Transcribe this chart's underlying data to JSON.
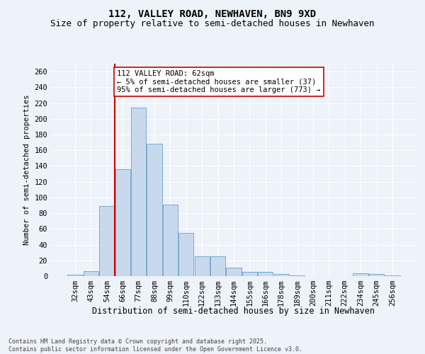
{
  "title": "112, VALLEY ROAD, NEWHAVEN, BN9 9XD",
  "subtitle": "Size of property relative to semi-detached houses in Newhaven",
  "xlabel": "Distribution of semi-detached houses by size in Newhaven",
  "ylabel": "Number of semi-detached properties",
  "categories": [
    "32sqm",
    "43sqm",
    "54sqm",
    "66sqm",
    "77sqm",
    "88sqm",
    "99sqm",
    "110sqm",
    "122sqm",
    "133sqm",
    "144sqm",
    "155sqm",
    "166sqm",
    "178sqm",
    "189sqm",
    "200sqm",
    "211sqm",
    "222sqm",
    "234sqm",
    "245sqm",
    "256sqm"
  ],
  "values": [
    2,
    6,
    89,
    136,
    214,
    168,
    91,
    55,
    25,
    25,
    11,
    5,
    5,
    3,
    1,
    0,
    0,
    0,
    4,
    3,
    1
  ],
  "bar_color": "#c8d9ee",
  "bar_edge_color": "#6aa0cc",
  "vline_index": 3,
  "vline_color": "#cc0000",
  "annotation_text": "112 VALLEY ROAD: 62sqm\n← 5% of semi-detached houses are smaller (37)\n95% of semi-detached houses are larger (773) →",
  "annotation_box_color": "#ffffff",
  "annotation_box_edge": "#cc0000",
  "ylim": [
    0,
    270
  ],
  "yticks": [
    0,
    20,
    40,
    60,
    80,
    100,
    120,
    140,
    160,
    180,
    200,
    220,
    240,
    260
  ],
  "background_color": "#eef2f9",
  "grid_color": "#ffffff",
  "title_fontsize": 10,
  "subtitle_fontsize": 9,
  "axis_fontsize": 7.5,
  "ylabel_fontsize": 7.5,
  "xlabel_fontsize": 8.5,
  "footer": "Contains HM Land Registry data © Crown copyright and database right 2025.\nContains public sector information licensed under the Open Government Licence v3.0."
}
